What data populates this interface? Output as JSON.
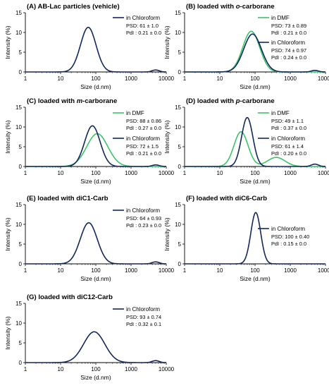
{
  "colors": {
    "dmf": "#3cc36b",
    "chloroform": "#13275c",
    "axis": "#000000"
  },
  "chart_data": [
    {
      "id": "A",
      "type": "line",
      "title": "(A) AB-Lac particles (vehicle)",
      "xlabel": "Size (d.nm)",
      "ylabel": "Intensity (%)",
      "xscale": "log",
      "xlim": [
        1,
        10000
      ],
      "ylim": [
        0,
        15
      ],
      "yticks": [
        0,
        5,
        10,
        15
      ],
      "xticks": [
        1,
        10,
        100,
        1000,
        10000
      ],
      "xtick_labels": [
        "1",
        "10",
        "100",
        "1000",
        "10000"
      ],
      "series": [
        {
          "name": "in Chloroform",
          "color": "chloroform",
          "stats": [
            "PSD: 61 ± 1.0",
            "PdI : 0.21 ± 0.0"
          ],
          "peaks": [
            {
              "mu": 61,
              "sigma": 0.22,
              "amp": 11.3
            },
            {
              "mu": 5000,
              "sigma": 0.1,
              "amp": 0.5
            }
          ]
        }
      ]
    },
    {
      "id": "B",
      "type": "line",
      "title": "(B) loaded with o-carborane",
      "title_parts": [
        "(B) loaded with ",
        "o",
        "-carborane"
      ],
      "xlabel": "Size (d.nm)",
      "ylabel": "Intensity (%)",
      "xscale": "log",
      "xlim": [
        1,
        10000
      ],
      "ylim": [
        0,
        15
      ],
      "yticks": [
        0,
        5,
        10,
        15
      ],
      "xticks": [
        1,
        10,
        100,
        1000,
        10000
      ],
      "xtick_labels": [
        "1",
        "10",
        "100",
        "1000",
        "10000"
      ],
      "series": [
        {
          "name": "in DMF",
          "color": "dmf",
          "stats": [
            "PSD: 73 ± 0.89",
            "PdI : 0.21 ± 0.0"
          ],
          "peaks": [
            {
              "mu": 78,
              "sigma": 0.24,
              "amp": 10.3
            }
          ]
        },
        {
          "name": "in Chloroform",
          "color": "chloroform",
          "stats": [
            "PSD: 74 ± 0.97",
            "PdI : 0.24 ± 0.0"
          ],
          "peaks": [
            {
              "mu": 85,
              "sigma": 0.25,
              "amp": 9.6
            },
            {
              "mu": 5000,
              "sigma": 0.1,
              "amp": 0.4
            }
          ]
        }
      ]
    },
    {
      "id": "C",
      "type": "line",
      "title": "(C) loaded with m-carborane",
      "title_parts": [
        "(C) loaded with ",
        "m",
        "-carborane"
      ],
      "xlabel": "Size (d.nm)",
      "ylabel": "Intensity (%)",
      "xscale": "log",
      "xlim": [
        1,
        10000
      ],
      "ylim": [
        0,
        15
      ],
      "yticks": [
        0,
        5,
        10,
        15
      ],
      "xticks": [
        1,
        10,
        100,
        1000,
        10000
      ],
      "xtick_labels": [
        "1",
        "10",
        "100",
        "1000",
        "10000"
      ],
      "series": [
        {
          "name": "in DMF",
          "color": "dmf",
          "stats": [
            "PSD: 88 ± 0.86",
            "PdI : 0.27 ± 0.0"
          ],
          "peaks": [
            {
              "mu": 110,
              "sigma": 0.3,
              "amp": 8.3
            }
          ]
        },
        {
          "name": "in Chloroform",
          "color": "chloroform",
          "stats": [
            "PSD: 72 ± 1.5",
            "PdI : 0.21 ± 0.0"
          ],
          "peaks": [
            {
              "mu": 80,
              "sigma": 0.22,
              "amp": 10.3
            },
            {
              "mu": 5000,
              "sigma": 0.1,
              "amp": 0.4
            }
          ]
        }
      ]
    },
    {
      "id": "D",
      "type": "line",
      "title": "(D) loaded with p-carborane",
      "title_parts": [
        "(D) loaded with ",
        "p",
        "-carborane"
      ],
      "xlabel": "Size (d.nm)",
      "ylabel": "Intensity (%)",
      "xscale": "log",
      "xlim": [
        1,
        10000
      ],
      "ylim": [
        0,
        15
      ],
      "yticks": [
        0,
        5,
        10,
        15
      ],
      "xticks": [
        1,
        10,
        100,
        1000,
        10000
      ],
      "xtick_labels": [
        "1",
        "10",
        "100",
        "1000",
        "10000"
      ],
      "series": [
        {
          "name": "in DMF",
          "color": "dmf",
          "stats": [
            "PSD: 49 ± 1.1",
            "PdI : 0.37 ± 0.0"
          ],
          "peaks": [
            {
              "mu": 40,
              "sigma": 0.2,
              "amp": 8.8
            },
            {
              "mu": 400,
              "sigma": 0.25,
              "amp": 2.3
            }
          ]
        },
        {
          "name": "in Chloroform",
          "color": "chloroform",
          "stats": [
            "PSD: 61 ± 1.4",
            "PdI : 0.20 ± 0.0"
          ],
          "peaks": [
            {
              "mu": 60,
              "sigma": 0.16,
              "amp": 12.4
            },
            {
              "mu": 5000,
              "sigma": 0.1,
              "amp": 0.6
            }
          ]
        }
      ]
    },
    {
      "id": "E",
      "type": "line",
      "title": "(E) loaded with diC1-Carb",
      "xlabel": "Size (d.nm)",
      "ylabel": "Intensity (%)",
      "xscale": "log",
      "xlim": [
        1,
        10000
      ],
      "ylim": [
        0,
        15
      ],
      "yticks": [
        0,
        5,
        10,
        15
      ],
      "xticks": [
        1,
        10,
        100,
        1000,
        10000
      ],
      "xtick_labels": [
        "1",
        "10",
        "100",
        "1000",
        "10000"
      ],
      "series": [
        {
          "name": "in Chloroform",
          "color": "chloroform",
          "stats": [
            "PSD: 64 ± 0.93",
            "PdI : 0.23 ± 0.0"
          ],
          "peaks": [
            {
              "mu": 63,
              "sigma": 0.24,
              "amp": 10.4
            },
            {
              "mu": 5000,
              "sigma": 0.1,
              "amp": 0.5
            }
          ]
        }
      ]
    },
    {
      "id": "F",
      "type": "line",
      "title": "(F) loaded with diC6-Carb",
      "xlabel": "Size (d.nm)",
      "ylabel": "Intensity (%)",
      "xscale": "log",
      "xlim": [
        1,
        10000
      ],
      "ylim": [
        0,
        15
      ],
      "yticks": [
        0,
        5,
        10,
        15
      ],
      "xticks": [
        1,
        10,
        100,
        1000,
        10000
      ],
      "xtick_labels": [
        "1",
        "10",
        "100",
        "1000",
        "10000"
      ],
      "series": [
        {
          "name": "in Chloroform",
          "color": "chloroform",
          "stats": [
            "PSD: 100 ± 0.40",
            "PdI : 0.15 ± 0.0"
          ],
          "peaks": [
            {
              "mu": 105,
              "sigma": 0.14,
              "amp": 13.0
            }
          ]
        }
      ]
    },
    {
      "id": "G",
      "type": "line",
      "title": "(G) loaded with diC12-Carb",
      "xlabel": "Size (d.nm)",
      "ylabel": "Intensity (%)",
      "xscale": "log",
      "xlim": [
        1,
        10000
      ],
      "ylim": [
        0,
        15
      ],
      "yticks": [
        0,
        5,
        10,
        15
      ],
      "xticks": [
        1,
        10,
        100,
        1000,
        10000
      ],
      "xtick_labels": [
        "1",
        "10",
        "100",
        "1000",
        "10000"
      ],
      "series": [
        {
          "name": "in Chloroform",
          "color": "chloroform",
          "stats": [
            "PSD: 93 ± 0.74",
            "PdI : 0.32 ± 0.1"
          ],
          "peaks": [
            {
              "mu": 90,
              "sigma": 0.3,
              "amp": 7.8
            },
            {
              "mu": 5000,
              "sigma": 0.1,
              "amp": 0.5
            }
          ]
        }
      ]
    }
  ]
}
